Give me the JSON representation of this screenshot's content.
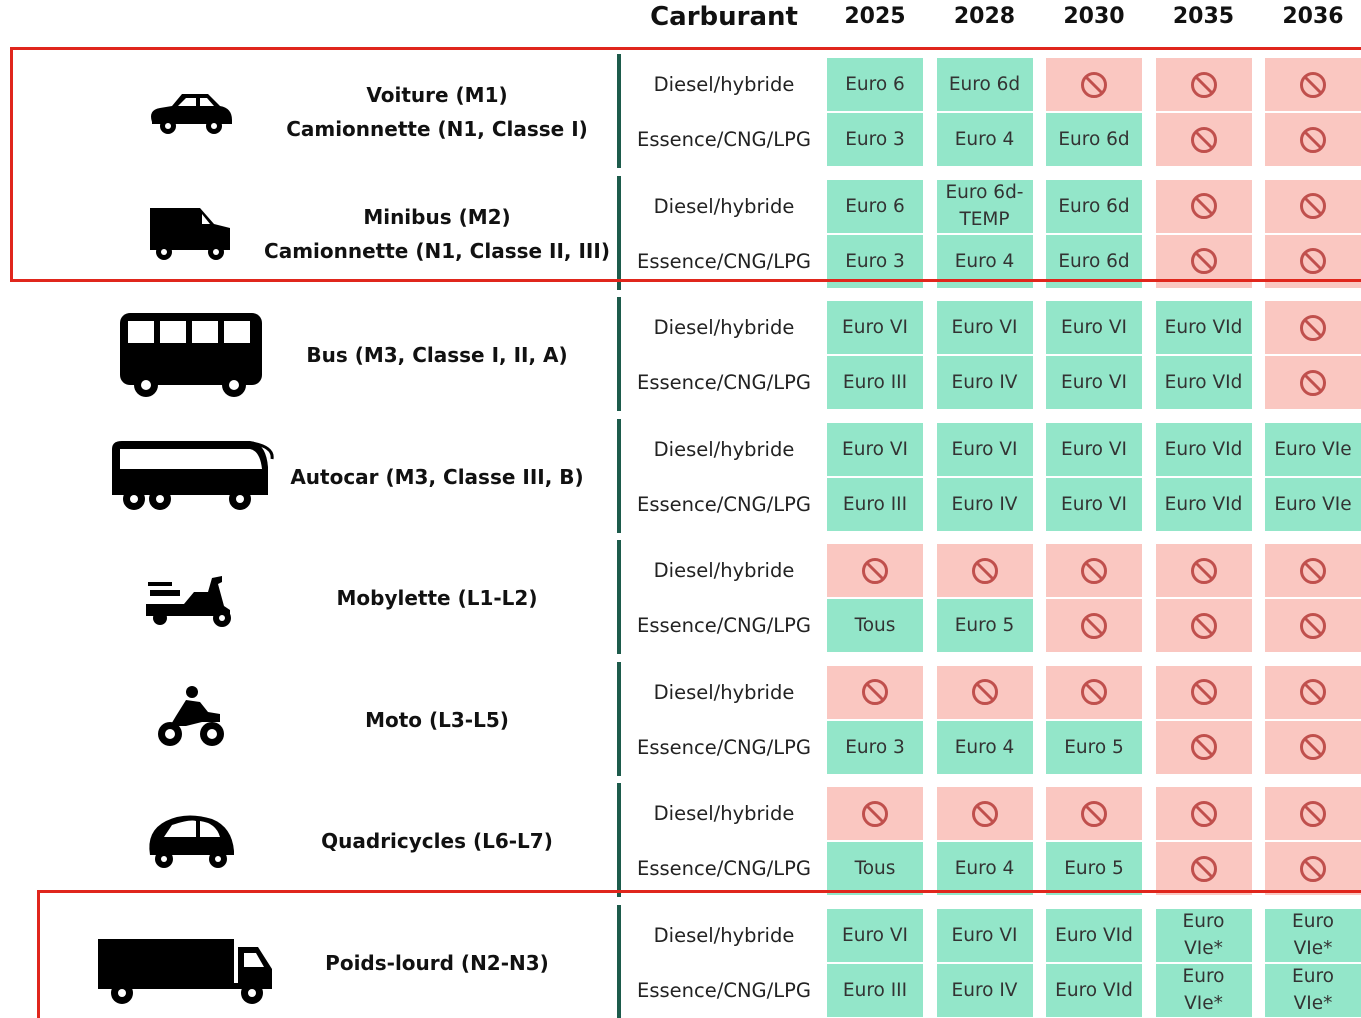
{
  "header": {
    "fuel": "Carburant",
    "years": [
      "2025",
      "2028",
      "2030",
      "2035",
      "2036"
    ]
  },
  "groups": [
    {
      "label": [
        "Voiture (M1)",
        "Camionnette (N1, Classe I)"
      ],
      "rows": [
        {
          "fuel": "Diesel/hybride",
          "cells": [
            "Euro 6",
            "Euro 6d",
            null,
            null,
            null
          ]
        },
        {
          "fuel": "Essence/CNG/LPG",
          "cells": [
            "Euro 3",
            "Euro 4",
            "Euro 6d",
            null,
            null
          ]
        }
      ]
    },
    {
      "label": [
        "Minibus (M2)",
        "Camionnette (N1, Classe II, III)"
      ],
      "rows": [
        {
          "fuel": "Diesel/hybride",
          "cells": [
            "Euro 6",
            "Euro 6d-\nTEMP",
            "Euro 6d",
            null,
            null
          ]
        },
        {
          "fuel": "Essence/CNG/LPG",
          "cells": [
            "Euro 3",
            "Euro 4",
            "Euro 6d",
            null,
            null
          ]
        }
      ]
    },
    {
      "label": [
        "Bus (M3, Classe I, II, A)"
      ],
      "rows": [
        {
          "fuel": "Diesel/hybride",
          "cells": [
            "Euro VI",
            "Euro VI",
            "Euro VI",
            "Euro VId",
            null
          ]
        },
        {
          "fuel": "Essence/CNG/LPG",
          "cells": [
            "Euro III",
            "Euro IV",
            "Euro VI",
            "Euro VId",
            null
          ]
        }
      ]
    },
    {
      "label": [
        "Autocar (M3, Classe III, B)"
      ],
      "rows": [
        {
          "fuel": "Diesel/hybride",
          "cells": [
            "Euro VI",
            "Euro VI",
            "Euro VI",
            "Euro VId",
            "Euro VIe"
          ]
        },
        {
          "fuel": "Essence/CNG/LPG",
          "cells": [
            "Euro III",
            "Euro IV",
            "Euro VI",
            "Euro VId",
            "Euro VIe"
          ]
        }
      ]
    },
    {
      "label": [
        "Mobylette (L1-L2)"
      ],
      "rows": [
        {
          "fuel": "Diesel/hybride",
          "cells": [
            null,
            null,
            null,
            null,
            null
          ]
        },
        {
          "fuel": "Essence/CNG/LPG",
          "cells": [
            "Tous",
            "Euro 5",
            null,
            null,
            null
          ]
        }
      ]
    },
    {
      "label": [
        "Moto (L3-L5)"
      ],
      "rows": [
        {
          "fuel": "Diesel/hybride",
          "cells": [
            null,
            null,
            null,
            null,
            null
          ]
        },
        {
          "fuel": "Essence/CNG/LPG",
          "cells": [
            "Euro 3",
            "Euro 4",
            "Euro 5",
            null,
            null
          ]
        }
      ]
    },
    {
      "label": [
        "Quadricycles (L6-L7)"
      ],
      "rows": [
        {
          "fuel": "Diesel/hybride",
          "cells": [
            null,
            null,
            null,
            null,
            null
          ]
        },
        {
          "fuel": "Essence/CNG/LPG",
          "cells": [
            "Tous",
            "Euro 4",
            "Euro 5",
            null,
            null
          ]
        }
      ]
    },
    {
      "label": [
        "Poids-lourd (N2-N3)"
      ],
      "rows": [
        {
          "fuel": "Diesel/hybride",
          "cells": [
            "Euro VI",
            "Euro VI",
            "Euro VId",
            "Euro\nVIe*",
            "Euro\nVIe*"
          ]
        },
        {
          "fuel": "Essence/CNG/LPG",
          "cells": [
            "Euro III",
            "Euro IV",
            "Euro VId",
            "Euro\nVIe*",
            "Euro\nVIe*"
          ]
        }
      ]
    }
  ]
}
